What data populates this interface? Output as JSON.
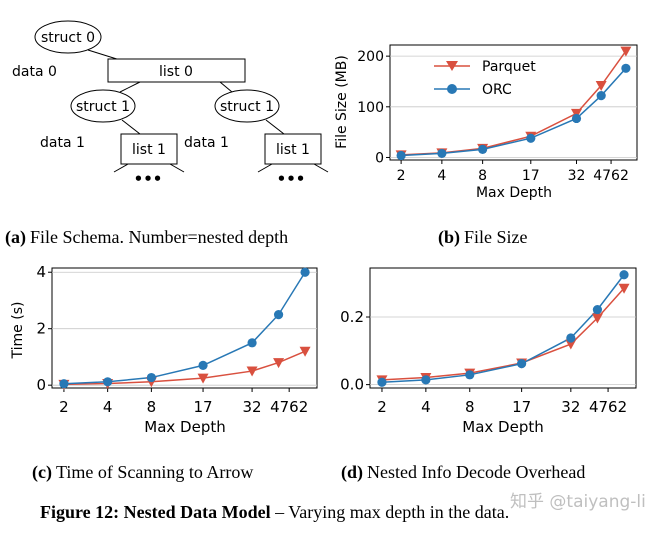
{
  "schema": {
    "struct0": "struct 0",
    "data0": "data 0",
    "list0": "list 0",
    "struct1_left": "struct 1",
    "struct1_right": "struct 1",
    "data1_left": "data 1",
    "data1_right": "data 1",
    "list1_left": "list 1",
    "list1_right": "list 1",
    "dots": "•••"
  },
  "captions": {
    "a_label": "(a)",
    "a_text": "File Schema. Number=nested depth",
    "b_label": "(b)",
    "b_text": "File Size",
    "c_label": "(c)",
    "c_text": "Time of Scanning to Arrow",
    "d_label": "(d)",
    "d_text": "Nested Info Decode Overhead"
  },
  "figure": {
    "label": "Figure 12: Nested Data Model",
    "text": " – Varying max depth in the data."
  },
  "watermark": "知乎 @taiyang-li",
  "colors": {
    "parquet": "#d9503f",
    "orc": "#2878b5"
  },
  "chart_data": [
    {
      "id": "b",
      "type": "line",
      "title": "File Size",
      "xlabel": "Max Depth",
      "ylabel": "File Size (MB)",
      "x": [
        2,
        4,
        8,
        17,
        32,
        47,
        62
      ],
      "xticks": [
        "2",
        "4",
        "8",
        "17",
        "32",
        "4762"
      ],
      "yticks": [
        "0",
        "100",
        "200"
      ],
      "ylim": [
        -5,
        222
      ],
      "legend": [
        "Parquet",
        "ORC"
      ],
      "series": [
        {
          "name": "Parquet",
          "marker": "triangle-down",
          "values": [
            5,
            9,
            18,
            42,
            87,
            142,
            210
          ]
        },
        {
          "name": "ORC",
          "marker": "circle",
          "values": [
            4,
            8,
            16,
            38,
            77,
            122,
            176
          ]
        }
      ]
    },
    {
      "id": "c",
      "type": "line",
      "title": "Time of Scanning to Arrow",
      "xlabel": "Max Depth",
      "ylabel": "Time (s)",
      "x": [
        2,
        4,
        8,
        17,
        32,
        47,
        62
      ],
      "xticks": [
        "2",
        "4",
        "8",
        "17",
        "32",
        "4762"
      ],
      "yticks": [
        "0",
        "2",
        "4"
      ],
      "ylim": [
        -0.1,
        4.15
      ],
      "series": [
        {
          "name": "Parquet",
          "marker": "triangle-down",
          "values": [
            0.03,
            0.06,
            0.12,
            0.25,
            0.5,
            0.8,
            1.2
          ]
        },
        {
          "name": "ORC",
          "marker": "circle",
          "values": [
            0.05,
            0.12,
            0.27,
            0.7,
            1.5,
            2.5,
            4.0
          ]
        }
      ]
    },
    {
      "id": "d",
      "type": "line",
      "title": "Nested Info Decode Overhead",
      "xlabel": "Max Depth",
      "ylabel": "",
      "x": [
        2,
        4,
        8,
        17,
        32,
        47,
        62
      ],
      "xticks": [
        "2",
        "4",
        "8",
        "17",
        "32",
        "4762"
      ],
      "yticks": [
        "0.0",
        "0.2"
      ],
      "ylim": [
        -0.01,
        0.345
      ],
      "series": [
        {
          "name": "Parquet",
          "marker": "triangle-down",
          "values": [
            0.014,
            0.021,
            0.034,
            0.064,
            0.12,
            0.197,
            0.285
          ]
        },
        {
          "name": "ORC",
          "marker": "circle",
          "values": [
            0.007,
            0.014,
            0.029,
            0.062,
            0.138,
            0.222,
            0.325
          ]
        }
      ]
    }
  ]
}
